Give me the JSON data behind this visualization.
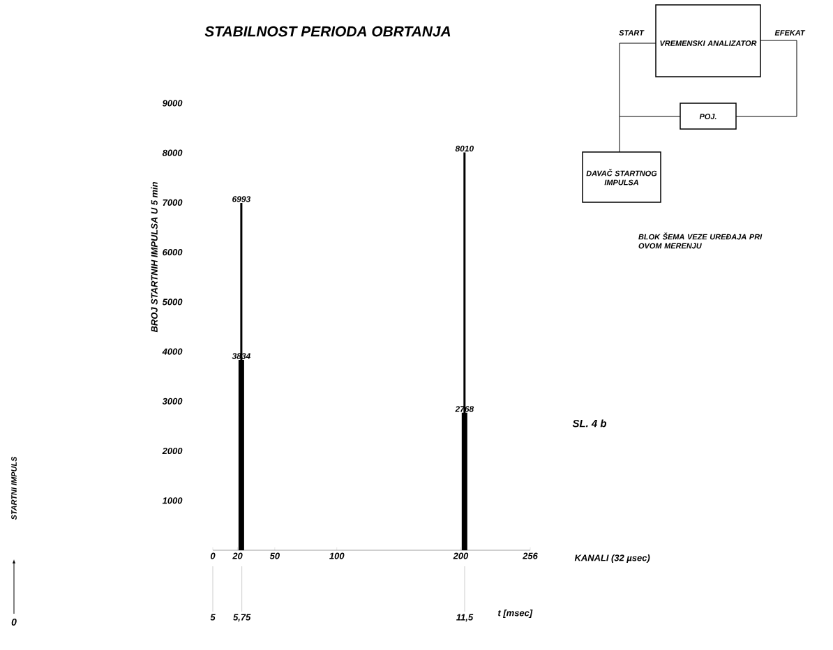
{
  "chart_data": {
    "type": "bar",
    "title": "STABILNOST PERIODA OBRTANJA",
    "xlabel": "KANALI (32 µsec)",
    "ylabel": "BROJ STARTNIH IMPULSA U 5 min",
    "x2label": "t [msec]",
    "x": [
      23,
      203
    ],
    "series": [
      {
        "color": "#000000",
        "values": [
          6993,
          8010
        ]
      },
      {
        "color": "#000000",
        "values": [
          3834,
          2768
        ]
      }
    ],
    "xlim": [
      0,
      256
    ],
    "xticks": [
      0,
      20,
      50,
      100,
      200,
      256
    ],
    "ylim": [
      0,
      9000
    ],
    "yticks": [
      1000,
      2000,
      3000,
      4000,
      5000,
      6000,
      7000,
      8000,
      9000
    ],
    "x2lim": [
      5,
      13.192
    ],
    "x2ticks": [
      5,
      {
        "value": 5.75,
        "label": "5,75"
      },
      {
        "value": 11.5,
        "label": "11,5"
      }
    ],
    "data_labels": true,
    "annotations": [
      "SL. 4 b",
      "0",
      "STARTNI IMPULS",
      "START",
      "VREMENSKI ANALIZATOR",
      "EFEKAT",
      "POJ.",
      "DAVAČ STARTNOG IMPULSA",
      "BLOK ŠEMA VEZE UREĐAJA PRI OVOM MERENJU"
    ]
  }
}
